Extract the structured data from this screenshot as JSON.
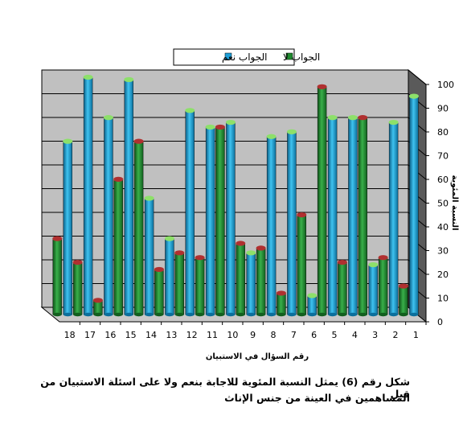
{
  "chart_data": {
    "type": "bar",
    "categories": [
      "1",
      "2",
      "3",
      "4",
      "5",
      "6",
      "7",
      "8",
      "9",
      "10",
      "11",
      "12",
      "13",
      "14",
      "15",
      "16",
      "17",
      "18"
    ],
    "series": [
      {
        "name": "الجواب نعم",
        "color": "#1e9fd8",
        "cap": "#8de06a",
        "values": [
          92,
          81,
          21,
          83,
          83,
          8,
          77,
          75,
          26,
          81,
          79,
          86,
          32,
          49,
          99,
          83,
          100,
          73
        ]
      },
      {
        "name": "الجواب لا",
        "color": "#1f8a2e",
        "cap": "#b03030",
        "values": [
          12,
          24,
          83,
          22,
          96,
          42,
          9,
          28,
          30,
          79,
          24,
          26,
          19,
          73,
          57,
          6,
          22,
          32
        ]
      }
    ],
    "ylim": [
      0,
      100
    ],
    "yticks": [
      0,
      10,
      20,
      30,
      40,
      50,
      60,
      70,
      80,
      90,
      100
    ],
    "ylabel": "النسبة المئوية",
    "xlabel": "رقم السؤال في الاستبيان",
    "grid": true,
    "legend": "top"
  },
  "caption": {
    "line1": "شكل رقم (6)   يمثل النسبة المئوية للاجابة بنعم ولا على اسئلة الاستبيان من قبل",
    "line2": "المساهمين في العينة من جنس الإناث"
  }
}
